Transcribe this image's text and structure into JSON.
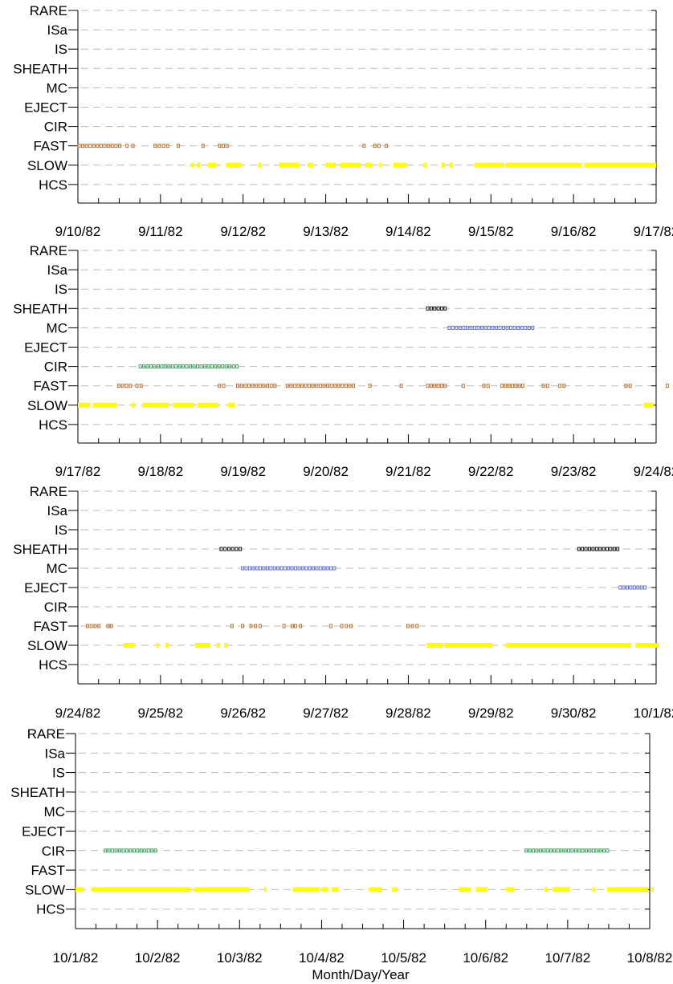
{
  "chart_data": {
    "type": "scatter",
    "xlabel": "Month/Day/Year",
    "categories": [
      "RARE",
      "ISa",
      "IS",
      "SHEATH",
      "MC",
      "EJECT",
      "CIR",
      "FAST",
      "SLOW",
      "HCS"
    ],
    "colors": {
      "SLOW": "#ffff00",
      "FAST": "#b5651d",
      "CIR": "#2e9e4f",
      "MC": "#5b6cc9",
      "EJECT": "#5b6cc9",
      "SHEATH": "#000000"
    },
    "panels": [
      {
        "start": "1982-09-10",
        "days": 7,
        "tick_labels": [
          "9/10/82",
          "9/11/82",
          "9/12/82",
          "9/13/82",
          "9/14/82",
          "9/15/82",
          "9/16/82",
          "9/17/82"
        ],
        "intervals": [
          {
            "category": "FAST",
            "from": 0.0,
            "to": 0.52
          },
          {
            "category": "FAST",
            "from": 0.58,
            "to": 0.68
          },
          {
            "category": "FAST",
            "from": 0.92,
            "to": 1.1
          },
          {
            "category": "FAST",
            "from": 1.2,
            "to": 1.23
          },
          {
            "category": "FAST",
            "from": 1.5,
            "to": 1.56
          },
          {
            "category": "FAST",
            "from": 1.7,
            "to": 1.82
          },
          {
            "category": "FAST",
            "from": 3.45,
            "to": 3.48
          },
          {
            "category": "FAST",
            "from": 3.58,
            "to": 3.66
          },
          {
            "category": "FAST",
            "from": 3.72,
            "to": 3.75
          },
          {
            "category": "SLOW",
            "from": 1.37,
            "to": 1.4
          },
          {
            "category": "SLOW",
            "from": 1.44,
            "to": 1.48
          },
          {
            "category": "SLOW",
            "from": 1.57,
            "to": 1.68
          },
          {
            "category": "SLOW",
            "from": 1.8,
            "to": 1.98
          },
          {
            "category": "SLOW",
            "from": 2.18,
            "to": 2.22
          },
          {
            "category": "SLOW",
            "from": 2.44,
            "to": 2.68
          },
          {
            "category": "SLOW",
            "from": 2.78,
            "to": 2.85
          },
          {
            "category": "SLOW",
            "from": 3.0,
            "to": 3.12
          },
          {
            "category": "SLOW",
            "from": 3.18,
            "to": 3.42
          },
          {
            "category": "SLOW",
            "from": 3.48,
            "to": 3.56
          },
          {
            "category": "SLOW",
            "from": 3.65,
            "to": 3.68
          },
          {
            "category": "SLOW",
            "from": 3.82,
            "to": 3.98
          },
          {
            "category": "SLOW",
            "from": 4.18,
            "to": 4.22
          },
          {
            "category": "SLOW",
            "from": 4.4,
            "to": 4.44
          },
          {
            "category": "SLOW",
            "from": 4.5,
            "to": 4.54
          },
          {
            "category": "SLOW",
            "from": 4.8,
            "to": 5.15
          },
          {
            "category": "SLOW",
            "from": 5.18,
            "to": 6.1
          },
          {
            "category": "SLOW",
            "from": 6.13,
            "to": 7.0
          }
        ]
      },
      {
        "start": "1982-09-17",
        "days": 7,
        "tick_labels": [
          "9/17/82",
          "9/18/82",
          "9/19/82",
          "9/20/82",
          "9/21/82",
          "9/22/82",
          "9/23/82",
          "9/24/82"
        ],
        "intervals": [
          {
            "category": "SHEATH",
            "from": 4.22,
            "to": 4.46
          },
          {
            "category": "MC",
            "from": 4.48,
            "to": 5.52
          },
          {
            "category": "CIR",
            "from": 0.74,
            "to": 1.94
          },
          {
            "category": "FAST",
            "from": 0.48,
            "to": 0.65
          },
          {
            "category": "FAST",
            "from": 0.7,
            "to": 0.78
          },
          {
            "category": "FAST",
            "from": 1.7,
            "to": 1.78
          },
          {
            "category": "FAST",
            "from": 1.92,
            "to": 2.4
          },
          {
            "category": "FAST",
            "from": 2.52,
            "to": 3.35
          },
          {
            "category": "FAST",
            "from": 3.52,
            "to": 3.55
          },
          {
            "category": "FAST",
            "from": 3.9,
            "to": 3.93
          },
          {
            "category": "FAST",
            "from": 4.22,
            "to": 4.46
          },
          {
            "category": "FAST",
            "from": 4.65,
            "to": 4.68
          },
          {
            "category": "FAST",
            "from": 4.9,
            "to": 4.98
          },
          {
            "category": "FAST",
            "from": 5.12,
            "to": 5.4
          },
          {
            "category": "FAST",
            "from": 5.62,
            "to": 5.7
          },
          {
            "category": "FAST",
            "from": 5.82,
            "to": 5.9
          },
          {
            "category": "FAST",
            "from": 6.62,
            "to": 6.7
          },
          {
            "category": "FAST",
            "from": 7.12,
            "to": 7.15
          },
          {
            "category": "SLOW",
            "from": 0.0,
            "to": 0.15
          },
          {
            "category": "SLOW",
            "from": 0.18,
            "to": 0.47
          },
          {
            "category": "SLOW",
            "from": 0.65,
            "to": 0.69
          },
          {
            "category": "SLOW",
            "from": 0.78,
            "to": 1.1
          },
          {
            "category": "SLOW",
            "from": 1.15,
            "to": 1.4
          },
          {
            "category": "SLOW",
            "from": 1.45,
            "to": 1.7
          },
          {
            "category": "SLOW",
            "from": 1.82,
            "to": 1.9
          },
          {
            "category": "SLOW",
            "from": 6.85,
            "to": 6.97
          }
        ]
      },
      {
        "start": "1982-09-24",
        "days": 7,
        "tick_labels": [
          "9/24/82",
          "9/25/82",
          "9/26/82",
          "9/27/82",
          "9/28/82",
          "9/29/82",
          "9/30/82",
          "10/1/82"
        ],
        "intervals": [
          {
            "category": "SHEATH",
            "from": 1.72,
            "to": 1.98
          },
          {
            "category": "SHEATH",
            "from": 6.05,
            "to": 6.55
          },
          {
            "category": "MC",
            "from": 1.98,
            "to": 3.12
          },
          {
            "category": "EJECT",
            "from": 6.55,
            "to": 6.88
          },
          {
            "category": "FAST",
            "from": 0.1,
            "to": 0.27
          },
          {
            "category": "FAST",
            "from": 0.35,
            "to": 0.42
          },
          {
            "category": "FAST",
            "from": 1.85,
            "to": 1.88
          },
          {
            "category": "FAST",
            "from": 1.98,
            "to": 2.02
          },
          {
            "category": "FAST",
            "from": 2.08,
            "to": 2.22
          },
          {
            "category": "FAST",
            "from": 2.48,
            "to": 2.51
          },
          {
            "category": "FAST",
            "from": 2.58,
            "to": 2.65
          },
          {
            "category": "FAST",
            "from": 2.68,
            "to": 2.72
          },
          {
            "category": "FAST",
            "from": 3.05,
            "to": 3.08
          },
          {
            "category": "FAST",
            "from": 3.18,
            "to": 3.32
          },
          {
            "category": "FAST",
            "from": 3.98,
            "to": 4.12
          },
          {
            "category": "SLOW",
            "from": 0.55,
            "to": 0.68
          },
          {
            "category": "SLOW",
            "from": 0.95,
            "to": 0.98
          },
          {
            "category": "SLOW",
            "from": 1.06,
            "to": 1.1
          },
          {
            "category": "SLOW",
            "from": 1.42,
            "to": 1.6
          },
          {
            "category": "SLOW",
            "from": 1.68,
            "to": 1.72
          },
          {
            "category": "SLOW",
            "from": 1.77,
            "to": 1.81
          },
          {
            "category": "SLOW",
            "from": 4.22,
            "to": 4.42
          },
          {
            "category": "SLOW",
            "from": 4.44,
            "to": 5.02
          },
          {
            "category": "SLOW",
            "from": 5.18,
            "to": 6.7
          },
          {
            "category": "SLOW",
            "from": 6.75,
            "to": 7.1
          }
        ]
      },
      {
        "start": "1982-10-01",
        "days": 7,
        "tick_labels": [
          "10/1/82",
          "10/2/82",
          "10/3/82",
          "10/4/82",
          "10/5/82",
          "10/6/82",
          "10/7/82",
          "10/8/82"
        ],
        "intervals": [
          {
            "category": "CIR",
            "from": 0.35,
            "to": 0.99
          },
          {
            "category": "CIR",
            "from": 5.48,
            "to": 6.5
          },
          {
            "category": "SLOW",
            "from": 0.0,
            "to": 0.1
          },
          {
            "category": "SLOW",
            "from": 0.2,
            "to": 1.4
          },
          {
            "category": "SLOW",
            "from": 1.45,
            "to": 2.12
          },
          {
            "category": "SLOW",
            "from": 2.3,
            "to": 2.33
          },
          {
            "category": "SLOW",
            "from": 2.65,
            "to": 2.97
          },
          {
            "category": "SLOW",
            "from": 3.0,
            "to": 3.08
          },
          {
            "category": "SLOW",
            "from": 3.12,
            "to": 3.2
          },
          {
            "category": "SLOW",
            "from": 3.58,
            "to": 3.74
          },
          {
            "category": "SLOW",
            "from": 3.86,
            "to": 3.92
          },
          {
            "category": "SLOW",
            "from": 4.67,
            "to": 4.82
          },
          {
            "category": "SLOW",
            "from": 4.88,
            "to": 5.02
          },
          {
            "category": "SLOW",
            "from": 5.25,
            "to": 5.35
          },
          {
            "category": "SLOW",
            "from": 5.72,
            "to": 5.76
          },
          {
            "category": "SLOW",
            "from": 5.82,
            "to": 6.03
          },
          {
            "category": "SLOW",
            "from": 6.3,
            "to": 6.34
          },
          {
            "category": "SLOW",
            "from": 6.48,
            "to": 6.98
          },
          {
            "category": "SLOW",
            "from": 7.02,
            "to": 7.08
          }
        ]
      }
    ]
  }
}
